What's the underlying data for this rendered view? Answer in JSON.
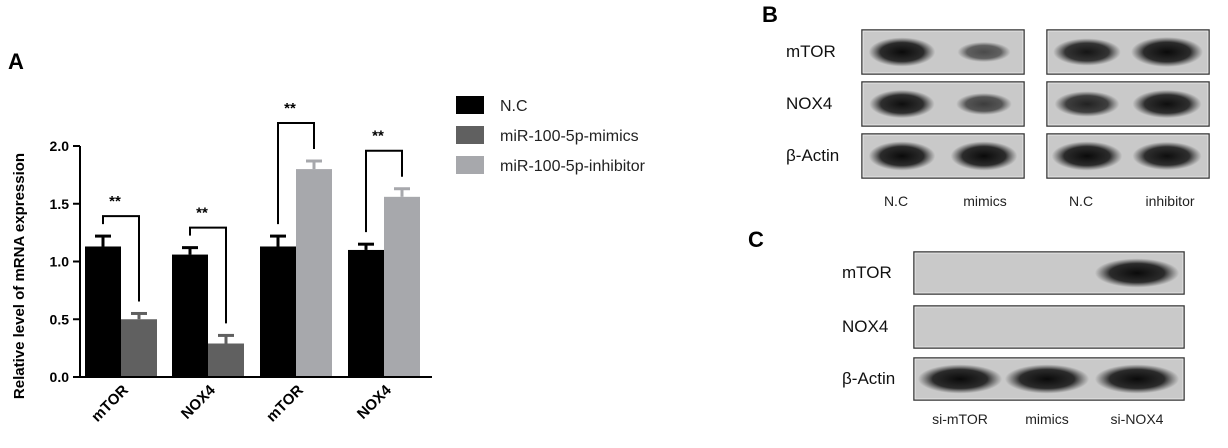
{
  "panels": {
    "A": "A",
    "B": "B",
    "C": "C"
  },
  "chart_data": {
    "type": "bar",
    "categories": [
      "mTOR",
      "NOX4",
      "mTOR",
      "NOX4"
    ],
    "ylabel": "Relative level of mRNA expression",
    "ylim": [
      0,
      2.0
    ],
    "yticks": [
      "0.0",
      "0.5",
      "1.0",
      "1.5",
      "2.0"
    ],
    "series": [
      {
        "name": "N.C",
        "color": "#000000",
        "values": [
          1.13,
          1.06,
          1.13,
          1.1
        ],
        "errors": [
          0.09,
          0.06,
          0.09,
          0.05
        ]
      },
      {
        "name": "miR-100-5p-mimics",
        "color": "#606060",
        "values": [
          0.5,
          0.29,
          null,
          null
        ],
        "errors": [
          0.05,
          0.07,
          null,
          null
        ]
      },
      {
        "name": "miR-100-5p-inhibitor",
        "color": "#a7a8ac",
        "values": [
          null,
          null,
          1.8,
          1.56
        ],
        "errors": [
          null,
          null,
          0.07,
          0.07
        ]
      }
    ],
    "significance": [
      "**",
      "**",
      "**",
      "**"
    ],
    "legend_position": "right"
  },
  "blot_b": {
    "left": {
      "rows": [
        "mTOR",
        "NOX4",
        "β-Actin"
      ],
      "lanes": [
        "N.C",
        "mimics"
      ],
      "intensity": [
        [
          0.95,
          0.45
        ],
        [
          0.9,
          0.55
        ],
        [
          0.95,
          0.95
        ]
      ]
    },
    "right": {
      "lanes": [
        "N.C",
        "inhibitor"
      ],
      "intensity": [
        [
          0.85,
          1.0
        ],
        [
          0.75,
          0.9
        ],
        [
          0.95,
          0.9
        ]
      ]
    }
  },
  "blot_c": {
    "rows": [
      "mTOR",
      "NOX4",
      "β-Actin"
    ],
    "lanes": [
      "si-mTOR",
      "mimics",
      "si-NOX4"
    ],
    "intensity": [
      [
        0.0,
        0.0,
        0.95
      ],
      [
        0.0,
        0.0,
        0.0
      ],
      [
        0.95,
        0.95,
        0.95
      ]
    ]
  }
}
